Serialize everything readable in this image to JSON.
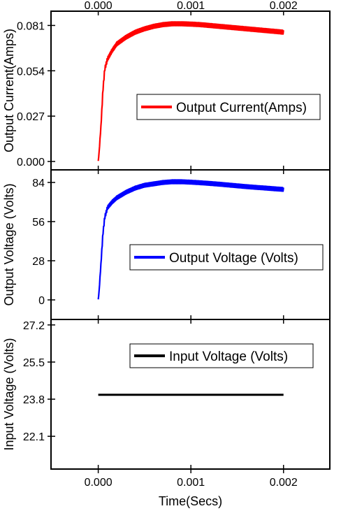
{
  "chart_data": {
    "type": "line",
    "shared_x": {
      "label": "Time(Secs)",
      "ticks": [
        "0.000",
        "0.001",
        "0.002"
      ],
      "tick_values": [
        0,
        0.001,
        0.002
      ],
      "range": [
        -0.00051,
        0.0025
      ],
      "top_ticks_mirrored": true
    },
    "panels": [
      {
        "id": "current",
        "ylabel": "Output Current(Amps)",
        "yticks": [
          "0.000",
          "0.027",
          "0.054",
          "0.081"
        ],
        "ytick_values": [
          0,
          0.027,
          0.054,
          0.081
        ],
        "ylim": [
          -0.005,
          0.0895
        ],
        "legend": "Output Current(Amps)",
        "legend_position": "center-right",
        "color": "#ff0000",
        "x": [
          0,
          1e-05,
          3e-05,
          5e-05,
          7e-05,
          0.0001,
          0.00015,
          0.0002,
          0.0003,
          0.0004,
          0.0005,
          0.0006,
          0.0007,
          0.0008,
          0.0009,
          0.001,
          0.0011,
          0.0012,
          0.0013,
          0.0014,
          0.0015,
          0.0016,
          0.0017,
          0.0018,
          0.0019,
          0.002
        ],
        "values": [
          0,
          0.006,
          0.022,
          0.042,
          0.055,
          0.061,
          0.066,
          0.07,
          0.074,
          0.077,
          0.079,
          0.0805,
          0.0815,
          0.082,
          0.082,
          0.0818,
          0.0815,
          0.081,
          0.0805,
          0.08,
          0.0795,
          0.079,
          0.0785,
          0.078,
          0.0775,
          0.077
        ],
        "ripple": true
      },
      {
        "id": "output_voltage",
        "ylabel": "Output Voltage (Volts)",
        "yticks": [
          "0",
          "28",
          "56",
          "84"
        ],
        "ytick_values": [
          0,
          28,
          56,
          84
        ],
        "ylim": [
          -14,
          93
        ],
        "legend": "Output Voltage (Volts)",
        "legend_position": "center-right",
        "color": "#0000ff",
        "x": [
          0,
          1e-05,
          3e-05,
          5e-05,
          7e-05,
          0.0001,
          0.00015,
          0.0002,
          0.0003,
          0.0004,
          0.0005,
          0.0006,
          0.0007,
          0.0008,
          0.0009,
          0.001,
          0.0011,
          0.0012,
          0.0013,
          0.0014,
          0.0015,
          0.0016,
          0.0017,
          0.0018,
          0.0019,
          0.002
        ],
        "values": [
          0,
          7,
          27,
          47,
          59,
          66,
          70,
          73,
          77,
          80,
          82,
          83,
          84,
          84.5,
          84.5,
          84.2,
          83.8,
          83.3,
          82.8,
          82.2,
          81.6,
          81,
          80.5,
          80,
          79.5,
          79
        ],
        "ripple": true
      },
      {
        "id": "input_voltage",
        "ylabel": "Input Voltage (Volts)",
        "yticks": [
          "22.1",
          "23.8",
          "25.5",
          "27.2"
        ],
        "ytick_values": [
          22.1,
          23.8,
          25.5,
          27.2
        ],
        "ylim": [
          20.6,
          27.45
        ],
        "legend": "Input Voltage (Volts)",
        "legend_position": "top-right",
        "color": "#000000",
        "x": [
          0,
          0.002
        ],
        "values": [
          24,
          24
        ],
        "ripple": false
      }
    ]
  }
}
